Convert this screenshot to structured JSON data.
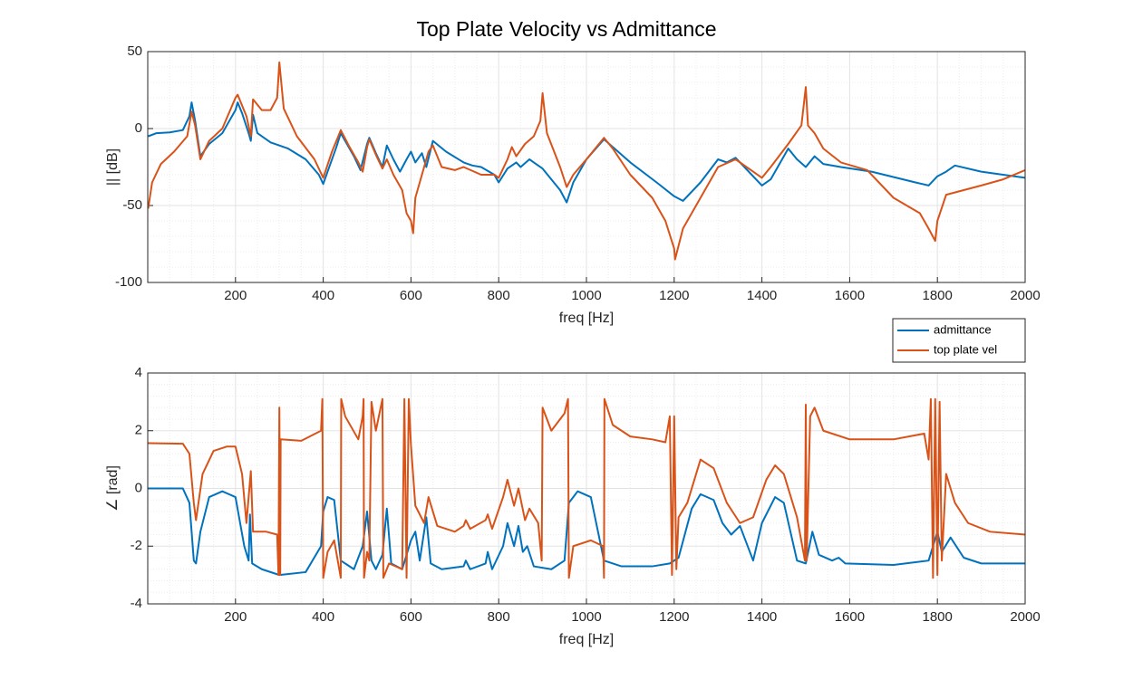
{
  "chart_data": [
    {
      "type": "line",
      "title": "Top Plate Velocity vs Admittance",
      "xlabel": "freq [Hz]",
      "ylabel": "|| [dB]",
      "xlim": [
        0,
        2000
      ],
      "xticks": [
        200,
        400,
        600,
        800,
        1000,
        1200,
        1400,
        1600,
        1800,
        2000
      ],
      "ylim": [
        -100,
        50
      ],
      "yticks": [
        -100,
        -50,
        0,
        50
      ],
      "grid": true,
      "minor_grid": true,
      "legend": "southeast",
      "series": [
        {
          "name": "admittance",
          "color": "#0072BD",
          "x": [
            1,
            20,
            50,
            80,
            95,
            100,
            108,
            120,
            140,
            170,
            200,
            205,
            215,
            230,
            235,
            240,
            250,
            280,
            320,
            360,
            390,
            400,
            410,
            430,
            440,
            450,
            470,
            485,
            500,
            505,
            520,
            535,
            545,
            560,
            575,
            590,
            600,
            610,
            625,
            635,
            650,
            680,
            720,
            740,
            760,
            790,
            800,
            820,
            840,
            850,
            870,
            880,
            900,
            940,
            955,
            970,
            1000,
            1040,
            1060,
            1100,
            1160,
            1200,
            1220,
            1260,
            1300,
            1320,
            1340,
            1360,
            1400,
            1420,
            1460,
            1480,
            1500,
            1520,
            1540,
            1580,
            1650,
            1750,
            1780,
            1800,
            1820,
            1840,
            1900,
            2000
          ],
          "values": [
            -5,
            -3,
            -2.5,
            -1,
            8,
            17,
            5,
            -18,
            -10,
            -3,
            12,
            17,
            10,
            -3,
            -8,
            9,
            -3,
            -9,
            -13,
            -20,
            -30,
            -36,
            -28,
            -12,
            -3,
            -8,
            -18,
            -27,
            -10,
            -6,
            -16,
            -25,
            -11,
            -20,
            -28,
            -20,
            -15,
            -22,
            -16,
            -25,
            -8,
            -15,
            -22,
            -24,
            -25,
            -30,
            -35,
            -26,
            -22,
            -25,
            -20,
            -22,
            -26,
            -40,
            -48,
            -35,
            -20,
            -7,
            -12,
            -22,
            -35,
            -44,
            -47,
            -35,
            -20,
            -22,
            -19,
            -25,
            -37,
            -33,
            -13,
            -20,
            -25,
            -18,
            -23,
            -25,
            -28,
            -35,
            -37,
            -31,
            -28,
            -24,
            -28,
            -32
          ]
        },
        {
          "name": "top plate vel",
          "color": "#D95319",
          "x": [
            1,
            10,
            30,
            60,
            90,
            100,
            108,
            120,
            140,
            170,
            200,
            205,
            215,
            225,
            235,
            240,
            260,
            280,
            295,
            300,
            310,
            340,
            380,
            400,
            420,
            440,
            460,
            480,
            490,
            500,
            505,
            520,
            535,
            545,
            560,
            580,
            590,
            600,
            605,
            610,
            625,
            640,
            650,
            670,
            700,
            720,
            760,
            790,
            800,
            820,
            830,
            840,
            860,
            880,
            895,
            900,
            910,
            940,
            955,
            970,
            1000,
            1040,
            1060,
            1100,
            1150,
            1180,
            1200,
            1202,
            1220,
            1260,
            1300,
            1340,
            1380,
            1400,
            1420,
            1460,
            1490,
            1500,
            1505,
            1520,
            1540,
            1580,
            1640,
            1700,
            1760,
            1780,
            1795,
            1800,
            1820,
            1860,
            1900,
            1950,
            2000
          ],
          "values": [
            -52,
            -35,
            -23,
            -15,
            -5,
            11,
            2,
            -20,
            -8,
            0,
            20,
            22,
            15,
            8,
            -5,
            19,
            12,
            12,
            20,
            43,
            13,
            -5,
            -20,
            -32,
            -15,
            -1,
            -12,
            -22,
            -28,
            -12,
            -7,
            -17,
            -26,
            -20,
            -30,
            -40,
            -55,
            -60,
            -68,
            -45,
            -30,
            -15,
            -11,
            -25,
            -27,
            -25,
            -30,
            -30,
            -32,
            -20,
            -12,
            -18,
            -10,
            -5,
            5,
            23,
            -3,
            -25,
            -38,
            -30,
            -20,
            -6,
            -13,
            -30,
            -45,
            -60,
            -78,
            -85,
            -65,
            -45,
            -25,
            -20,
            -28,
            -32,
            -25,
            -10,
            2,
            27,
            2,
            -3,
            -13,
            -22,
            -27,
            -45,
            -55,
            -65,
            -73,
            -60,
            -43,
            -40,
            -37,
            -33,
            -27
          ]
        }
      ]
    },
    {
      "type": "line",
      "xlabel": "freq [Hz]",
      "ylabel": "∠ [rad]",
      "xlim": [
        0,
        2000
      ],
      "xticks": [
        200,
        400,
        600,
        800,
        1000,
        1200,
        1400,
        1600,
        1800,
        2000
      ],
      "ylim": [
        -4,
        4
      ],
      "yticks": [
        -4,
        -2,
        0,
        2,
        4
      ],
      "grid": true,
      "minor_grid": true,
      "series": [
        {
          "color": "#0072BD",
          "x": [
            1,
            80,
            95,
            105,
            110,
            120,
            140,
            170,
            200,
            220,
            230,
            233,
            238,
            260,
            300,
            360,
            395,
            400,
            410,
            425,
            440,
            470,
            490,
            500,
            510,
            520,
            535,
            545,
            555,
            580,
            600,
            610,
            620,
            635,
            645,
            670,
            720,
            725,
            735,
            770,
            775,
            785,
            810,
            820,
            835,
            845,
            855,
            865,
            880,
            920,
            950,
            960,
            980,
            1010,
            1040,
            1080,
            1150,
            1190,
            1210,
            1240,
            1260,
            1290,
            1310,
            1330,
            1350,
            1380,
            1400,
            1430,
            1450,
            1480,
            1500,
            1515,
            1530,
            1560,
            1575,
            1590,
            1700,
            1780,
            1800,
            1810,
            1830,
            1860,
            1900,
            2000
          ],
          "values": [
            0,
            0,
            -0.5,
            -2.5,
            -2.6,
            -1.5,
            -0.3,
            -0.1,
            -0.3,
            -2,
            -2.5,
            -0.9,
            -2.6,
            -2.8,
            -3.0,
            -2.9,
            -2,
            -0.8,
            -0.3,
            -0.4,
            -2.5,
            -2.8,
            -2,
            -0.8,
            -2.5,
            -2.8,
            -2.3,
            -0.7,
            -2.6,
            -2.8,
            -1.8,
            -1.5,
            -2.5,
            -1,
            -2.6,
            -2.8,
            -2.7,
            -2.5,
            -2.8,
            -2.6,
            -2.2,
            -2.8,
            -2,
            -1.2,
            -2,
            -1.3,
            -2.2,
            -2,
            -2.7,
            -2.8,
            -2.5,
            -0.5,
            -0.1,
            -0.3,
            -2.5,
            -2.7,
            -2.7,
            -2.6,
            -2.4,
            -0.7,
            -0.2,
            -0.4,
            -1.2,
            -1.6,
            -1.3,
            -2.5,
            -1.2,
            -0.3,
            -0.5,
            -2.5,
            -2.6,
            -1.5,
            -2.3,
            -2.5,
            -2.4,
            -2.6,
            -2.65,
            -2.5,
            -1.5,
            -2.2,
            -1.7,
            -2.4,
            -2.6,
            -2.6
          ]
        },
        {
          "color": "#D95319",
          "x": [
            1,
            80,
            95,
            105,
            110,
            125,
            150,
            180,
            200,
            215,
            225,
            235,
            240,
            270,
            295,
            298,
            300,
            302,
            303,
            350,
            395,
            398,
            400,
            410,
            425,
            440,
            441,
            450,
            480,
            490,
            492,
            493,
            500,
            505,
            510,
            520,
            535,
            537,
            550,
            580,
            585,
            590,
            595,
            600,
            610,
            630,
            640,
            660,
            700,
            720,
            725,
            735,
            770,
            775,
            785,
            810,
            820,
            835,
            845,
            860,
            870,
            890,
            898,
            900,
            920,
            950,
            958,
            960,
            970,
            1010,
            1038,
            1040,
            1041,
            1060,
            1100,
            1150,
            1180,
            1190,
            1195,
            1200,
            1205,
            1210,
            1230,
            1260,
            1290,
            1320,
            1350,
            1380,
            1410,
            1430,
            1450,
            1480,
            1498,
            1500,
            1502,
            1510,
            1520,
            1540,
            1600,
            1700,
            1770,
            1780,
            1785,
            1790,
            1795,
            1800,
            1805,
            1810,
            1820,
            1840,
            1870,
            1920,
            2000
          ],
          "values": [
            1.57,
            1.55,
            1.2,
            -0.5,
            -1.1,
            0.5,
            1.3,
            1.45,
            1.45,
            0.5,
            -1.2,
            0.6,
            -1.5,
            -1.5,
            -1.6,
            -3.0,
            2.8,
            -3.0,
            1.7,
            1.65,
            2,
            3.1,
            -3.1,
            -2.2,
            -1.8,
            -3.1,
            3.1,
            2.5,
            1.7,
            2.5,
            3.1,
            -3.1,
            -2.2,
            -2.5,
            3.0,
            2.0,
            3.1,
            -3.1,
            -2.6,
            -2.8,
            3.1,
            -3.1,
            3.1,
            1.5,
            -0.6,
            -1.2,
            -0.3,
            -1.3,
            -1.5,
            -1.3,
            -1.1,
            -1.4,
            -1.1,
            -0.9,
            -1.4,
            -0.3,
            0.3,
            -0.6,
            0,
            -1.1,
            -0.7,
            -1.2,
            -2.5,
            2.8,
            2.0,
            2.6,
            3.1,
            -3.1,
            -2.0,
            -1.8,
            -2,
            -3.1,
            3.1,
            2.2,
            1.8,
            1.7,
            1.6,
            2.5,
            -3.0,
            2.5,
            -2.8,
            -1,
            -0.5,
            1,
            0.7,
            -0.5,
            -1.2,
            -1,
            0.3,
            0.8,
            0.5,
            -1.0,
            -2.5,
            2.9,
            -2.5,
            2.5,
            2.8,
            2.0,
            1.7,
            1.7,
            1.9,
            1.0,
            3.1,
            -3.1,
            3.1,
            -3.0,
            3.0,
            -2.5,
            0.5,
            -0.5,
            -1.2,
            -1.5,
            -1.6
          ]
        }
      ]
    }
  ]
}
